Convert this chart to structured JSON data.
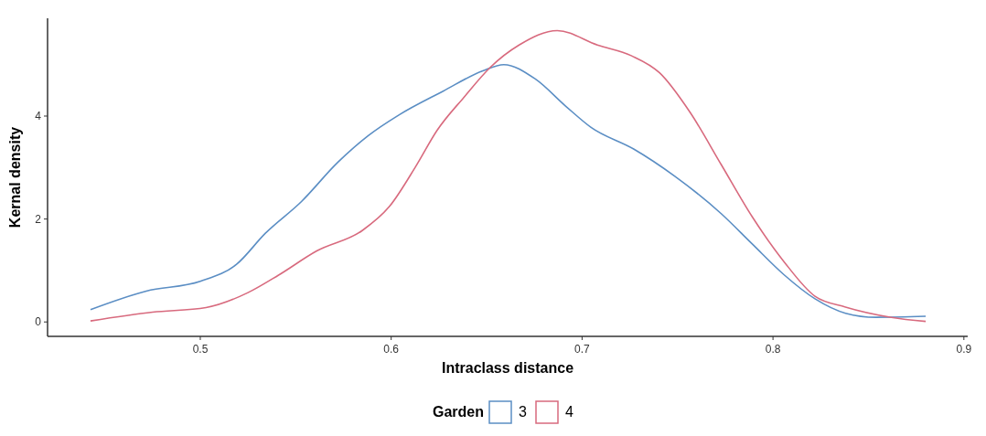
{
  "chart_data": {
    "type": "line",
    "xlabel": "Intraclass distance",
    "ylabel": "Kernal density",
    "legend_title": "Garden",
    "legend": "bottom",
    "grid": false,
    "xlim": [
      0.42,
      0.902
    ],
    "ylim": [
      -0.28,
      5.9
    ],
    "xticks": [
      0.5,
      0.6,
      0.7,
      0.8,
      0.9
    ],
    "yticks": [
      0,
      2,
      4
    ],
    "series": [
      {
        "name": "3",
        "color": "#5b8ec4",
        "x": [
          0.4425,
          0.4717,
          0.5,
          0.519,
          0.534,
          0.553,
          0.572,
          0.588,
          0.604,
          0.627,
          0.648,
          0.659,
          0.6755,
          0.6915,
          0.7047,
          0.727,
          0.7486,
          0.773,
          0.789,
          0.806,
          0.822,
          0.838,
          0.854,
          0.88
        ],
        "values": [
          0.24,
          0.6,
          0.79,
          1.12,
          1.72,
          2.34,
          3.1,
          3.62,
          4.02,
          4.48,
          4.88,
          5.0,
          4.72,
          4.19,
          3.78,
          3.36,
          2.83,
          2.1,
          1.52,
          0.91,
          0.45,
          0.17,
          0.09,
          0.11
        ]
      },
      {
        "name": "4",
        "color": "#d86a7e",
        "x": [
          0.4425,
          0.475,
          0.503,
          0.525,
          0.541,
          0.561,
          0.585,
          0.599,
          0.613,
          0.624,
          0.638,
          0.652,
          0.667,
          0.687,
          0.708,
          0.726,
          0.7406,
          0.7566,
          0.773,
          0.789,
          0.806,
          0.822,
          0.838,
          0.862,
          0.88
        ],
        "values": [
          0.02,
          0.19,
          0.28,
          0.57,
          0.91,
          1.38,
          1.78,
          2.24,
          3.03,
          3.72,
          4.36,
          4.95,
          5.38,
          5.66,
          5.38,
          5.17,
          4.84,
          4.07,
          3.05,
          2.05,
          1.16,
          0.5,
          0.29,
          0.09,
          0.01
        ]
      }
    ]
  }
}
